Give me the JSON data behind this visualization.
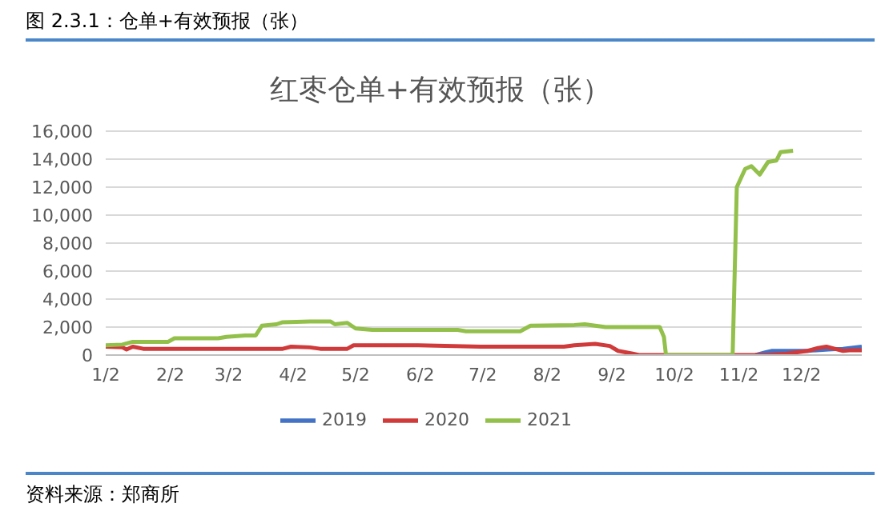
{
  "chart_data": {
    "type": "line",
    "title": "红枣仓单+有效预报（张）",
    "annotations": [
      "图 2.3.1：仓单+有效预报（张）",
      "资料来源：郑商所"
    ],
    "xlim": [
      "--01-02",
      "--12-31"
    ],
    "xticks": [
      {
        "value": "--01-02",
        "label": "1/2"
      },
      {
        "value": "--02-02",
        "label": "2/2"
      },
      {
        "value": "--03-02",
        "label": "3/2"
      },
      {
        "value": "--04-02",
        "label": "4/2"
      },
      {
        "value": "--05-02",
        "label": "5/2"
      },
      {
        "value": "--06-02",
        "label": "6/2"
      },
      {
        "value": "--07-02",
        "label": "7/2"
      },
      {
        "value": "--08-02",
        "label": "8/2"
      },
      {
        "value": "--09-02",
        "label": "9/2"
      },
      {
        "value": "--10-02",
        "label": "10/2"
      },
      {
        "value": "--11-02",
        "label": "11/2"
      },
      {
        "value": "--12-02",
        "label": "12/2"
      }
    ],
    "ylim": [
      0,
      16000
    ],
    "yticks": [
      0,
      {
        "value": 2000,
        "label": "2,000"
      },
      {
        "value": 4000,
        "label": "4,000"
      },
      {
        "value": 6000,
        "label": "6,000"
      },
      {
        "value": 8000,
        "label": "8,000"
      },
      {
        "value": 10000,
        "label": "10,000"
      },
      {
        "value": 12000,
        "label": "12,000"
      },
      {
        "value": 14000,
        "label": "14,000"
      },
      {
        "value": 16000,
        "label": "16,000"
      }
    ],
    "grid": "y",
    "legend": "bottom",
    "marker": "none",
    "line_style": "solid",
    "series": [
      {
        "name": "2019",
        "color": "#4472c4",
        "x": [
          "--11-10",
          "--11-15",
          "--11-18",
          "--12-05",
          "--12-15",
          "--12-22",
          "--12-31"
        ],
        "values": [
          0,
          200,
          300,
          300,
          400,
          450,
          600
        ]
      },
      {
        "name": "2020",
        "color": "#d03a3a",
        "x": [
          "--01-02",
          "--01-10",
          "--01-12",
          "--01-15",
          "--01-20",
          "--03-28",
          "--04-01",
          "--04-10",
          "--04-15",
          "--04-28",
          "--05-01",
          "--06-01",
          "--07-01",
          "--08-10",
          "--08-15",
          "--08-25",
          "--09-01",
          "--09-05",
          "--09-12",
          "--09-15",
          "--11-15",
          "--11-25",
          "--12-05",
          "--12-10",
          "--12-14",
          "--12-18",
          "--12-22",
          "--12-26",
          "--12-31"
        ],
        "values": [
          600,
          550,
          400,
          600,
          450,
          450,
          600,
          550,
          450,
          450,
          700,
          700,
          600,
          600,
          700,
          800,
          650,
          300,
          100,
          0,
          0,
          100,
          300,
          500,
          600,
          450,
          300,
          350,
          350
        ]
      },
      {
        "name": "2021",
        "color": "#92c04a",
        "x": [
          "--01-02",
          "--01-10",
          "--01-15",
          "--02-01",
          "--02-04",
          "--02-25",
          "--03-01",
          "--03-10",
          "--03-15",
          "--03-18",
          "--03-25",
          "--03-28",
          "--04-10",
          "--04-20",
          "--04-22",
          "--04-28",
          "--04-30",
          "--05-02",
          "--05-10",
          "--06-20",
          "--06-24",
          "--07-20",
          "--07-25",
          "--08-15",
          "--08-20",
          "--08-30",
          "--09-25",
          "--09-27",
          "--09-28",
          "--10-30",
          "--11-01",
          "--11-05",
          "--11-08",
          "--11-12",
          "--11-16",
          "--11-20",
          "--11-22",
          "--11-28"
        ],
        "values": [
          700,
          750,
          950,
          950,
          1200,
          1200,
          1300,
          1400,
          1400,
          2100,
          2200,
          2350,
          2400,
          2400,
          2200,
          2300,
          2100,
          1900,
          1800,
          1800,
          1700,
          1700,
          2100,
          2150,
          2200,
          2000,
          2000,
          1300,
          0,
          0,
          12000,
          13300,
          13500,
          12900,
          13800,
          13900,
          14500,
          14600
        ]
      }
    ]
  }
}
